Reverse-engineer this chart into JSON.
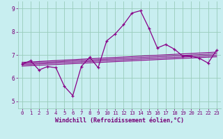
{
  "title": "",
  "xlabel": "Windchill (Refroidissement éolien,°C)",
  "bg_color": "#c8eef0",
  "line_color": "#880088",
  "grid_color": "#99ccbb",
  "xlim": [
    -0.5,
    23.5
  ],
  "ylim": [
    4.7,
    9.3
  ],
  "xticks": [
    0,
    1,
    2,
    3,
    4,
    5,
    6,
    7,
    8,
    9,
    10,
    11,
    12,
    13,
    14,
    15,
    16,
    17,
    18,
    19,
    20,
    21,
    22,
    23
  ],
  "yticks": [
    5,
    6,
    7,
    8,
    9
  ],
  "main_data": {
    "x": [
      0,
      1,
      2,
      3,
      4,
      5,
      6,
      7,
      8,
      9,
      10,
      11,
      12,
      13,
      14,
      15,
      16,
      17,
      18,
      19,
      20,
      21,
      22,
      23
    ],
    "y": [
      6.6,
      6.75,
      6.35,
      6.5,
      6.45,
      5.65,
      5.25,
      6.5,
      6.9,
      6.45,
      7.6,
      7.9,
      8.3,
      8.8,
      8.9,
      8.15,
      7.3,
      7.45,
      7.25,
      6.95,
      6.95,
      6.85,
      6.65,
      7.2
    ]
  },
  "trend_lines": [
    {
      "x": [
        0,
        23
      ],
      "y": [
        6.52,
        6.92
      ]
    },
    {
      "x": [
        0,
        23
      ],
      "y": [
        6.58,
        6.98
      ]
    },
    {
      "x": [
        0,
        23
      ],
      "y": [
        6.63,
        7.05
      ]
    },
    {
      "x": [
        0,
        23
      ],
      "y": [
        6.68,
        7.12
      ]
    }
  ],
  "font_color": "#770077",
  "tick_fontsize": 5.2,
  "label_fontsize": 6.0
}
